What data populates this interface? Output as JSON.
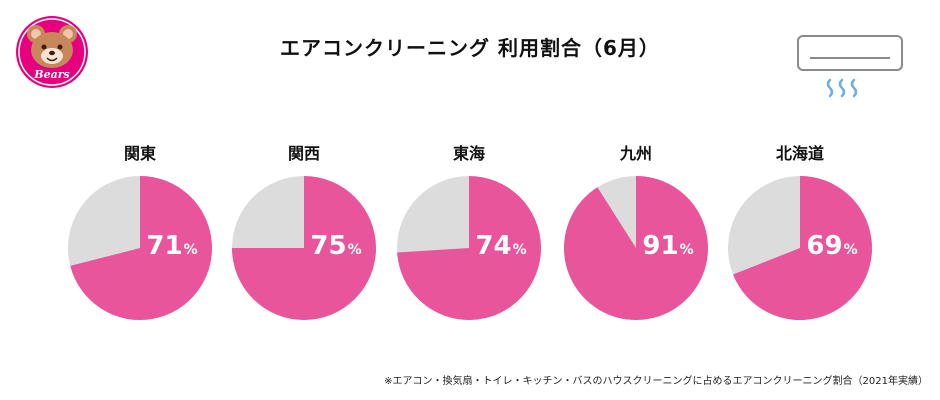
{
  "logo": {
    "text": "Bears"
  },
  "title": "エアコンクリーニング 利用割合（6月）",
  "unit": "%",
  "footnote": "※エアコン・換気扇・トイレ・キッチン・バスのハウスクリーニングに占めるエアコンクリーニング割合（2021年実績）",
  "colors": {
    "accent": "#e9559a",
    "rest": "#dcdcdc"
  },
  "chart_data": {
    "type": "pie",
    "title": "エアコンクリーニング 利用割合（6月）",
    "categories": [
      "関東",
      "関西",
      "東海",
      "九州",
      "北海道"
    ],
    "values": [
      71,
      75,
      74,
      91,
      69
    ],
    "unit": "%",
    "max": 100
  }
}
